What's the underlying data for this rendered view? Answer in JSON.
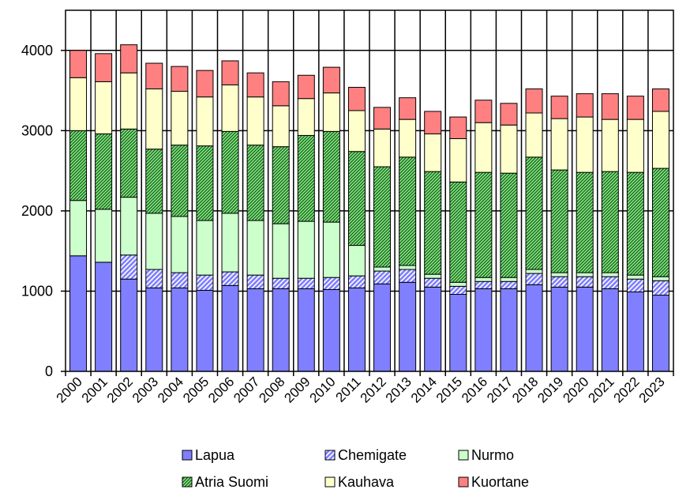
{
  "chart_data": {
    "type": "bar",
    "stacked": true,
    "title": "",
    "xlabel": "",
    "ylabel": "",
    "ylim": [
      0,
      4500
    ],
    "yticks": [
      0,
      1000,
      2000,
      3000,
      4000
    ],
    "grid": true,
    "legend_position": "bottom",
    "categories": [
      "2000",
      "2001",
      "2002",
      "2003",
      "2004",
      "2005",
      "2006",
      "2007",
      "2008",
      "2009",
      "2010",
      "2011",
      "2012",
      "2013",
      "2014",
      "2015",
      "2016",
      "2017",
      "2018",
      "2019",
      "2020",
      "2021",
      "2022",
      "2023"
    ],
    "series": [
      {
        "name": "Lapua",
        "color": "#7f7fff",
        "pattern": "solid",
        "values": [
          1440,
          1360,
          1150,
          1040,
          1040,
          1010,
          1070,
          1030,
          1030,
          1030,
          1020,
          1040,
          1090,
          1110,
          1050,
          960,
          1030,
          1030,
          1080,
          1050,
          1050,
          1030,
          990,
          950
        ]
      },
      {
        "name": "Chemigate",
        "color": "#7f7fff",
        "pattern": "diagonal",
        "values": [
          0,
          0,
          300,
          230,
          190,
          190,
          170,
          170,
          130,
          130,
          150,
          150,
          160,
          160,
          110,
          100,
          90,
          90,
          140,
          130,
          130,
          150,
          160,
          180
        ]
      },
      {
        "name": "Nurmo",
        "color": "#ccffcc",
        "pattern": "solid",
        "values": [
          690,
          660,
          720,
          700,
          700,
          680,
          730,
          680,
          680,
          710,
          690,
          380,
          50,
          50,
          50,
          50,
          50,
          50,
          50,
          50,
          50,
          50,
          50,
          50
        ]
      },
      {
        "name": "Atria Suomi",
        "color": "#339933",
        "pattern": "hatch",
        "values": [
          870,
          940,
          850,
          800,
          890,
          930,
          1020,
          940,
          960,
          1070,
          1130,
          1170,
          1250,
          1350,
          1280,
          1250,
          1310,
          1300,
          1400,
          1280,
          1250,
          1260,
          1280,
          1350
        ]
      },
      {
        "name": "Kauhava",
        "color": "#ffffcc",
        "pattern": "solid",
        "values": [
          660,
          650,
          700,
          750,
          670,
          610,
          580,
          600,
          510,
          460,
          480,
          510,
          470,
          470,
          470,
          540,
          620,
          600,
          550,
          640,
          690,
          650,
          660,
          710
        ]
      },
      {
        "name": "Kuortane",
        "color": "#ff8080",
        "pattern": "solid",
        "values": [
          340,
          350,
          350,
          320,
          310,
          330,
          300,
          300,
          300,
          290,
          320,
          290,
          270,
          270,
          280,
          270,
          280,
          270,
          300,
          280,
          290,
          320,
          290,
          280
        ]
      }
    ]
  }
}
